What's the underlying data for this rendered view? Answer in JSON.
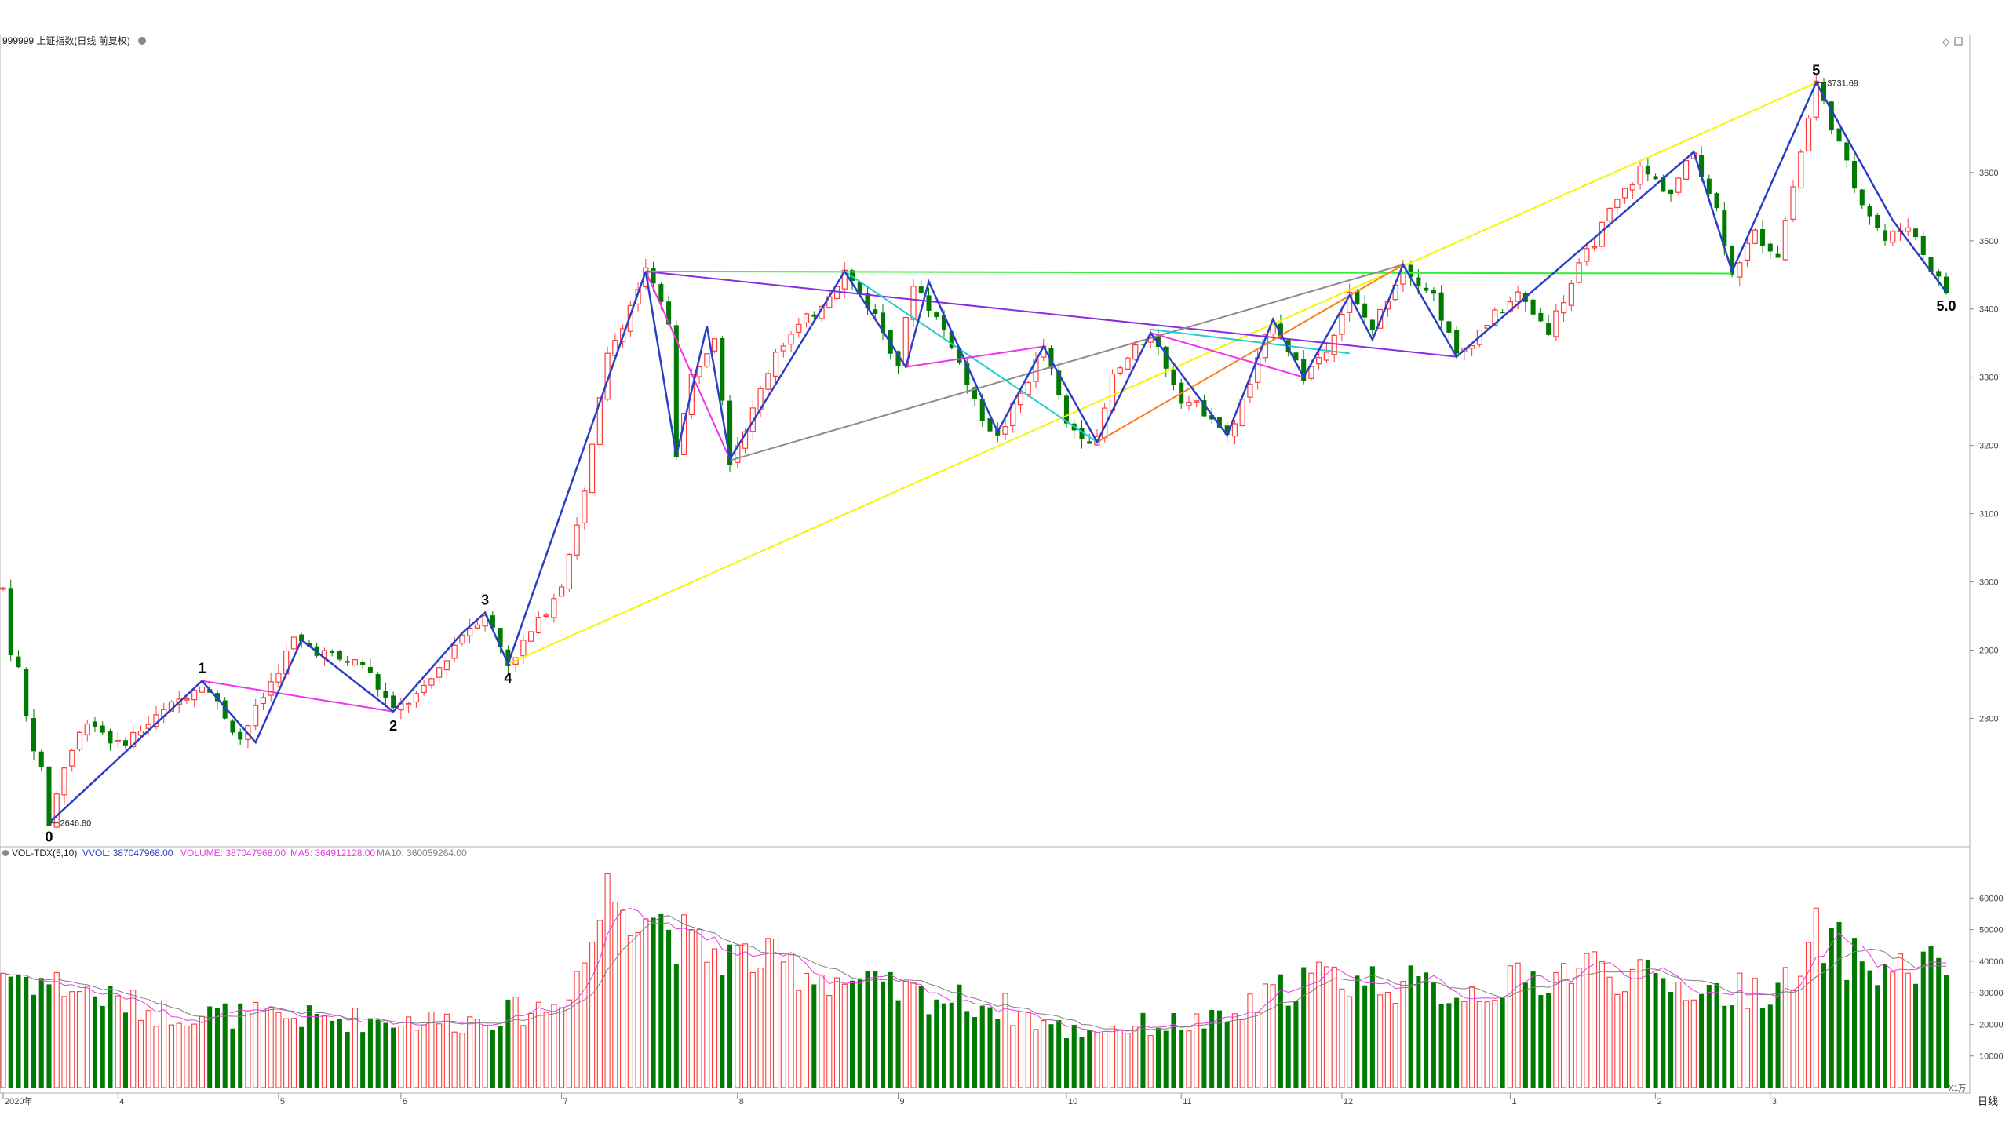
{
  "header": {
    "symbol_title": "999999 上证指数(日线 前复权)"
  },
  "volume_header": {
    "indicator": "VOL-TDX(5,10)",
    "vvol": "VVOL: 387047968.00",
    "volume": "VOLUME: 387047968.00",
    "ma5": "MA5: 364912128.00",
    "ma10": "MA10: 360059264.00"
  },
  "colors": {
    "up": "#ff3b3b",
    "down": "#007a00",
    "wave_main": "#2a3fc6",
    "trend_yellow": "#f5f500",
    "trend_green": "#33ee33",
    "trend_purple": "#8a2be2",
    "trend_magenta": "#ee33ee",
    "trend_cyan": "#22cccc",
    "trend_gray": "#8c8c8c",
    "trend_orange": "#ff7a1a",
    "ma5": "#e040e0",
    "ma10": "#808080"
  },
  "axis_labels": {
    "price_ticks": [
      "3600",
      "3500",
      "3400",
      "3300",
      "3200",
      "3100",
      "3000",
      "2900",
      "2800"
    ],
    "volume_ticks": [
      "60000",
      "50000",
      "40000",
      "30000",
      "20000",
      "10000"
    ],
    "volume_unit": "X1万",
    "period": "日线",
    "months": [
      "2020年",
      "4",
      "5",
      "6",
      "7",
      "8",
      "9",
      "10",
      "11",
      "12",
      "1",
      "2",
      "3"
    ]
  },
  "annotations": {
    "low_value": "2646.80",
    "high_value": "3731.69",
    "wave_labels": [
      "0",
      "1",
      "2",
      "3",
      "4",
      "5",
      "5.0"
    ]
  },
  "chart_data": {
    "type": "candlestick",
    "price_ylim": [
      2620,
      3770
    ],
    "price_ticks": [
      2800,
      2900,
      3000,
      3100,
      3200,
      3300,
      3400,
      3500,
      3600
    ],
    "volume_ylim": [
      0,
      70000
    ],
    "volume_ticks": [
      10000,
      20000,
      30000,
      40000,
      50000,
      60000
    ],
    "n_candles": 255,
    "month_starts": [
      {
        "label": "2020年",
        "index": 0
      },
      {
        "label": "4",
        "index": 15
      },
      {
        "label": "5",
        "index": 36
      },
      {
        "label": "6",
        "index": 52
      },
      {
        "label": "7",
        "index": 73
      },
      {
        "label": "8",
        "index": 96
      },
      {
        "label": "9",
        "index": 117
      },
      {
        "label": "10",
        "index": 139
      },
      {
        "label": "11",
        "index": 154
      },
      {
        "label": "12",
        "index": 175
      },
      {
        "label": "1",
        "index": 197
      },
      {
        "label": "2",
        "index": 216
      },
      {
        "label": "3",
        "index": 231
      }
    ],
    "anchors": [
      {
        "i": 0,
        "p": 2990
      },
      {
        "i": 1,
        "p": 2900
      },
      {
        "i": 2,
        "p": 2870
      },
      {
        "i": 3,
        "p": 2800
      },
      {
        "i": 5,
        "p": 2720
      },
      {
        "i": 6,
        "p": 2646.8
      },
      {
        "i": 8,
        "p": 2730
      },
      {
        "i": 11,
        "p": 2800
      },
      {
        "i": 15,
        "p": 2760
      },
      {
        "i": 20,
        "p": 2800
      },
      {
        "i": 26,
        "p": 2855
      },
      {
        "i": 31,
        "p": 2770
      },
      {
        "i": 38,
        "p": 2915
      },
      {
        "i": 44,
        "p": 2885
      },
      {
        "i": 47,
        "p": 2880
      },
      {
        "i": 51,
        "p": 2810
      },
      {
        "i": 55,
        "p": 2840
      },
      {
        "i": 60,
        "p": 2925
      },
      {
        "i": 63,
        "p": 2955
      },
      {
        "i": 66,
        "p": 2880
      },
      {
        "i": 70,
        "p": 2940
      },
      {
        "i": 73,
        "p": 3000
      },
      {
        "i": 76,
        "p": 3130
      },
      {
        "i": 79,
        "p": 3330
      },
      {
        "i": 84,
        "p": 3455
      },
      {
        "i": 87,
        "p": 3380
      },
      {
        "i": 88,
        "p": 3190
      },
      {
        "i": 90,
        "p": 3300
      },
      {
        "i": 93,
        "p": 3365
      },
      {
        "i": 95,
        "p": 3180
      },
      {
        "i": 98,
        "p": 3250
      },
      {
        "i": 101,
        "p": 3340
      },
      {
        "i": 106,
        "p": 3395
      },
      {
        "i": 110,
        "p": 3455
      },
      {
        "i": 114,
        "p": 3390
      },
      {
        "i": 117,
        "p": 3320
      },
      {
        "i": 119,
        "p": 3440
      },
      {
        "i": 124,
        "p": 3350
      },
      {
        "i": 127,
        "p": 3260
      },
      {
        "i": 130,
        "p": 3210
      },
      {
        "i": 133,
        "p": 3275
      },
      {
        "i": 136,
        "p": 3345
      },
      {
        "i": 139,
        "p": 3230
      },
      {
        "i": 143,
        "p": 3205
      },
      {
        "i": 145,
        "p": 3300
      },
      {
        "i": 150,
        "p": 3365
      },
      {
        "i": 154,
        "p": 3270
      },
      {
        "i": 158,
        "p": 3245
      },
      {
        "i": 160,
        "p": 3210
      },
      {
        "i": 163,
        "p": 3290
      },
      {
        "i": 166,
        "p": 3385
      },
      {
        "i": 170,
        "p": 3300
      },
      {
        "i": 173,
        "p": 3345
      },
      {
        "i": 176,
        "p": 3420
      },
      {
        "i": 179,
        "p": 3370
      },
      {
        "i": 183,
        "p": 3465
      },
      {
        "i": 187,
        "p": 3420
      },
      {
        "i": 190,
        "p": 3330
      },
      {
        "i": 194,
        "p": 3380
      },
      {
        "i": 198,
        "p": 3420
      },
      {
        "i": 202,
        "p": 3370
      },
      {
        "i": 206,
        "p": 3460
      },
      {
        "i": 210,
        "p": 3540
      },
      {
        "i": 214,
        "p": 3605
      },
      {
        "i": 218,
        "p": 3570
      },
      {
        "i": 221,
        "p": 3630
      },
      {
        "i": 224,
        "p": 3545
      },
      {
        "i": 226,
        "p": 3455
      },
      {
        "i": 229,
        "p": 3510
      },
      {
        "i": 232,
        "p": 3480
      },
      {
        "i": 235,
        "p": 3630
      },
      {
        "i": 237,
        "p": 3731.69
      },
      {
        "i": 240,
        "p": 3640
      },
      {
        "i": 242,
        "p": 3580
      },
      {
        "i": 246,
        "p": 3500
      },
      {
        "i": 249,
        "p": 3525
      },
      {
        "i": 252,
        "p": 3460
      },
      {
        "i": 254,
        "p": 3425
      }
    ],
    "volume_profile": [
      {
        "i": 0,
        "v": 37000
      },
      {
        "i": 10,
        "v": 31000
      },
      {
        "i": 20,
        "v": 24000
      },
      {
        "i": 40,
        "v": 22000
      },
      {
        "i": 60,
        "v": 21000
      },
      {
        "i": 72,
        "v": 26000
      },
      {
        "i": 76,
        "v": 40000
      },
      {
        "i": 79,
        "v": 62000
      },
      {
        "i": 84,
        "v": 58000
      },
      {
        "i": 90,
        "v": 44000
      },
      {
        "i": 100,
        "v": 40000
      },
      {
        "i": 115,
        "v": 31000
      },
      {
        "i": 130,
        "v": 26000
      },
      {
        "i": 139,
        "v": 18000
      },
      {
        "i": 150,
        "v": 20000
      },
      {
        "i": 160,
        "v": 21000
      },
      {
        "i": 170,
        "v": 35000
      },
      {
        "i": 180,
        "v": 34000
      },
      {
        "i": 190,
        "v": 30000
      },
      {
        "i": 200,
        "v": 34000
      },
      {
        "i": 207,
        "v": 39000
      },
      {
        "i": 215,
        "v": 34000
      },
      {
        "i": 225,
        "v": 30000
      },
      {
        "i": 235,
        "v": 33000
      },
      {
        "i": 237,
        "v": 48000
      },
      {
        "i": 245,
        "v": 37000
      },
      {
        "i": 254,
        "v": 39000
      }
    ],
    "wave_path": [
      {
        "i": 6,
        "p": 2646.8
      },
      {
        "i": 26,
        "p": 2855
      },
      {
        "i": 33,
        "p": 2765
      },
      {
        "i": 39,
        "p": 2915
      },
      {
        "i": 51,
        "p": 2810
      },
      {
        "i": 60,
        "p": 2925
      },
      {
        "i": 63,
        "p": 2955
      },
      {
        "i": 66,
        "p": 2880
      },
      {
        "i": 84,
        "p": 3455
      },
      {
        "i": 88,
        "p": 3185
      },
      {
        "i": 92,
        "p": 3375
      },
      {
        "i": 95,
        "p": 3180
      },
      {
        "i": 110,
        "p": 3455
      },
      {
        "i": 118,
        "p": 3315
      },
      {
        "i": 121,
        "p": 3440
      },
      {
        "i": 130,
        "p": 3220
      },
      {
        "i": 136,
        "p": 3345
      },
      {
        "i": 143,
        "p": 3205
      },
      {
        "i": 150,
        "p": 3365
      },
      {
        "i": 160,
        "p": 3215
      },
      {
        "i": 166,
        "p": 3385
      },
      {
        "i": 170,
        "p": 3300
      },
      {
        "i": 176,
        "p": 3420
      },
      {
        "i": 179,
        "p": 3355
      },
      {
        "i": 183,
        "p": 3465
      },
      {
        "i": 190,
        "p": 3330
      },
      {
        "i": 221,
        "p": 3630
      },
      {
        "i": 226,
        "p": 3455
      },
      {
        "i": 237,
        "p": 3731.69
      },
      {
        "i": 247,
        "p": 3530
      },
      {
        "i": 254,
        "p": 3425
      }
    ],
    "trend_lines": [
      {
        "color": "trend_yellow",
        "from": {
          "i": 66,
          "p": 2880
        },
        "to": {
          "i": 237,
          "p": 3731.69
        }
      },
      {
        "color": "trend_green",
        "from": {
          "i": 84,
          "p": 3455
        },
        "to": {
          "i": 226,
          "p": 3452
        }
      },
      {
        "color": "trend_purple",
        "from": {
          "i": 84,
          "p": 3455
        },
        "to": {
          "i": 190,
          "p": 3330
        }
      },
      {
        "color": "trend_gray",
        "from": {
          "i": 95,
          "p": 3178
        },
        "to": {
          "i": 183,
          "p": 3465
        }
      },
      {
        "color": "trend_orange",
        "from": {
          "i": 143,
          "p": 3205
        },
        "to": {
          "i": 183,
          "p": 3465
        }
      },
      {
        "color": "trend_cyan",
        "from": {
          "i": 110,
          "p": 3455
        },
        "to": {
          "i": 143,
          "p": 3205
        }
      },
      {
        "color": "trend_cyan",
        "from": {
          "i": 150,
          "p": 3370
        },
        "to": {
          "i": 176,
          "p": 3335
        }
      },
      {
        "color": "trend_magenta",
        "from": {
          "i": 26,
          "p": 2855
        },
        "to": {
          "i": 51,
          "p": 2810
        }
      },
      {
        "color": "trend_magenta",
        "from": {
          "i": 84,
          "p": 3455
        },
        "to": {
          "i": 95,
          "p": 3180
        }
      },
      {
        "color": "trend_magenta",
        "from": {
          "i": 118,
          "p": 3315
        },
        "to": {
          "i": 136,
          "p": 3345
        }
      },
      {
        "color": "trend_magenta",
        "from": {
          "i": 150,
          "p": 3365
        },
        "to": {
          "i": 170,
          "p": 3300
        }
      }
    ],
    "wave_labels": [
      {
        "text": "0",
        "i": 6,
        "p": 2646.8,
        "pos": "below"
      },
      {
        "text": "1",
        "i": 26,
        "p": 2855,
        "pos": "above"
      },
      {
        "text": "2",
        "i": 51,
        "p": 2810,
        "pos": "below"
      },
      {
        "text": "3",
        "i": 63,
        "p": 2955,
        "pos": "above"
      },
      {
        "text": "4",
        "i": 66,
        "p": 2880,
        "pos": "below"
      },
      {
        "text": "5",
        "i": 237,
        "p": 3731.69,
        "pos": "above"
      },
      {
        "text": "5.0",
        "i": 254,
        "p": 3425,
        "pos": "below"
      }
    ]
  }
}
